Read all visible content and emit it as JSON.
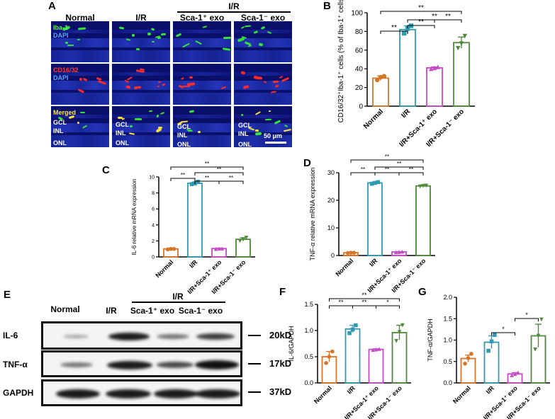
{
  "panel_letters": {
    "A": "A",
    "B": "B",
    "C": "C",
    "D": "D",
    "E": "E",
    "F": "F",
    "G": "G"
  },
  "panelA": {
    "columns": [
      "Normal",
      "I/R",
      "Sca-1⁺ exo",
      "Sca-1⁻ exo"
    ],
    "group_header": "I/R",
    "row1_labels": [
      "Iba-1",
      "DAPI"
    ],
    "row2_labels": [
      "CD16/32",
      "DAPI"
    ],
    "row3_label": "Merged",
    "layers": [
      "GCL",
      "INL",
      "ONL"
    ],
    "scale_bar": "50 μm"
  },
  "panelE": {
    "columns": [
      "Normal",
      "I/R",
      "Sca-1⁺ exo",
      "Sca-1⁻ exo"
    ],
    "group_header": "I/R",
    "rows": [
      {
        "name": "IL-6",
        "size": "20kD"
      },
      {
        "name": "TNF-α",
        "size": "17kD"
      },
      {
        "name": "GAPDH",
        "size": "37kD"
      }
    ]
  },
  "chart_data": [
    {
      "id": "B",
      "type": "bar",
      "categories": [
        "Normal",
        "I/R",
        "I/R+Sca-1⁺ exo",
        "I/R+Sca-1⁻ exo"
      ],
      "values": [
        30,
        82,
        41,
        68
      ],
      "errors": [
        2.5,
        4,
        1,
        6
      ],
      "points": [
        [
          28,
          31,
          32
        ],
        [
          78,
          83,
          86
        ],
        [
          40,
          41,
          42
        ],
        [
          62,
          67,
          75
        ]
      ],
      "ylabel": "CD16/32⁺Iba-1⁺ cells (% of Iba-1⁺ cells)",
      "ylim": [
        0,
        100
      ],
      "yticks": [
        0,
        20,
        40,
        60,
        80,
        100
      ],
      "colors": [
        "#d4772b",
        "#2e9bb0",
        "#c54bc7",
        "#4e8a3a"
      ],
      "brackets": [
        {
          "from": 0,
          "to": 1,
          "label": "**"
        },
        {
          "from": 1,
          "to": 2,
          "label": "**"
        },
        {
          "from": 2,
          "to": 3,
          "label": "**"
        },
        {
          "from": 1,
          "to": 3,
          "label": "**"
        },
        {
          "from": 0,
          "to": 3,
          "label": "**"
        }
      ]
    },
    {
      "id": "C",
      "type": "bar",
      "categories": [
        "Normal",
        "I/R",
        "I/R+Sca-1⁺ exo",
        "I/R+Sca-1⁻ exo"
      ],
      "values": [
        1.0,
        9.2,
        1.05,
        2.2
      ],
      "errors": [
        0.05,
        0.15,
        0.05,
        0.2
      ],
      "points": [
        [
          0.95,
          1.0,
          1.0
        ],
        [
          9.1,
          9.2,
          9.4
        ],
        [
          1.0,
          1.05,
          1.05
        ],
        [
          2.0,
          2.2,
          2.4
        ]
      ],
      "ylabel": "IL-6 relative mRNA expression",
      "ylim": [
        0,
        10
      ],
      "yticks": [
        0,
        2,
        4,
        6,
        8,
        10
      ],
      "colors": [
        "#d4772b",
        "#2e9bb0",
        "#c54bc7",
        "#4e8a3a"
      ],
      "brackets": [
        {
          "from": 0,
          "to": 1,
          "label": "**"
        },
        {
          "from": 1,
          "to": 2,
          "label": "**"
        },
        {
          "from": 2,
          "to": 3,
          "label": "**"
        },
        {
          "from": 1,
          "to": 3,
          "label": "**"
        },
        {
          "from": 0,
          "to": 3,
          "label": "**"
        }
      ]
    },
    {
      "id": "D",
      "type": "bar",
      "categories": [
        "Normal",
        "I/R",
        "I/R+Sca-1⁺ exo",
        "I/R+Sca-1⁻ exo"
      ],
      "values": [
        1.0,
        26.3,
        1.3,
        25.2
      ],
      "errors": [
        0.1,
        0.3,
        0.1,
        0.2
      ],
      "points": [
        [
          0.9,
          1.0,
          1.0
        ],
        [
          26.0,
          26.3,
          26.6
        ],
        [
          1.2,
          1.3,
          1.4
        ],
        [
          25.0,
          25.2,
          25.3
        ]
      ],
      "ylabel": "TNF-α relative mRNA expression",
      "ylim": [
        0,
        30
      ],
      "yticks": [
        0,
        10,
        20,
        30
      ],
      "colors": [
        "#d4772b",
        "#2e9bb0",
        "#c54bc7",
        "#4e8a3a"
      ],
      "brackets": [
        {
          "from": 0,
          "to": 1,
          "label": "**"
        },
        {
          "from": 1,
          "to": 2,
          "label": "**"
        },
        {
          "from": 2,
          "to": 3,
          "label": "**"
        },
        {
          "from": 1,
          "to": 3,
          "label": "**"
        },
        {
          "from": 0,
          "to": 3,
          "label": "**"
        }
      ]
    },
    {
      "id": "F",
      "type": "bar",
      "categories": [
        "Normal",
        "I/R",
        "I/R+Sca-1⁺ exo",
        "I/R+Sca-1⁻ exo"
      ],
      "values": [
        0.5,
        1.03,
        0.64,
        0.96
      ],
      "errors": [
        0.1,
        0.07,
        0.01,
        0.14
      ],
      "points": [
        [
          0.38,
          0.5,
          0.6
        ],
        [
          0.95,
          1.02,
          1.1
        ],
        [
          0.63,
          0.64,
          0.65
        ],
        [
          0.8,
          0.97,
          1.1
        ]
      ],
      "ylabel": "IL-6/GAPDH",
      "ylim": [
        0,
        1.5
      ],
      "yticks": [
        "0.0",
        "0.5",
        "1.0",
        "1.5"
      ],
      "colors": [
        "#d4772b",
        "#2e9bb0",
        "#c54bc7",
        "#4e8a3a"
      ],
      "brackets": [
        {
          "from": 0,
          "to": 1,
          "label": "**"
        },
        {
          "from": 1,
          "to": 2,
          "label": "**"
        },
        {
          "from": 2,
          "to": 3,
          "label": "*"
        },
        {
          "from": 0,
          "to": 3,
          "label": "**"
        }
      ]
    },
    {
      "id": "G",
      "type": "bar",
      "categories": [
        "Normal",
        "I/R",
        "I/R+Sca-1⁺ exo",
        "I/R+Sca-1⁻ exo"
      ],
      "values": [
        0.57,
        0.95,
        0.21,
        1.1
      ],
      "errors": [
        0.08,
        0.15,
        0.03,
        0.27
      ],
      "points": [
        [
          0.45,
          0.58,
          0.68
        ],
        [
          0.75,
          0.97,
          1.12
        ],
        [
          0.18,
          0.21,
          0.24
        ],
        [
          0.78,
          1.1,
          1.48
        ]
      ],
      "ylabel": "TNF-α/GAPDH",
      "ylim": [
        0,
        2.0
      ],
      "yticks": [
        "0.0",
        "0.5",
        "1.0",
        "1.5",
        "2.0"
      ],
      "colors": [
        "#d4772b",
        "#2e9bb0",
        "#c54bc7",
        "#4e8a3a"
      ],
      "brackets": [
        {
          "from": 1,
          "to": 2,
          "label": "*"
        },
        {
          "from": 2,
          "to": 3,
          "label": "*"
        }
      ]
    }
  ]
}
